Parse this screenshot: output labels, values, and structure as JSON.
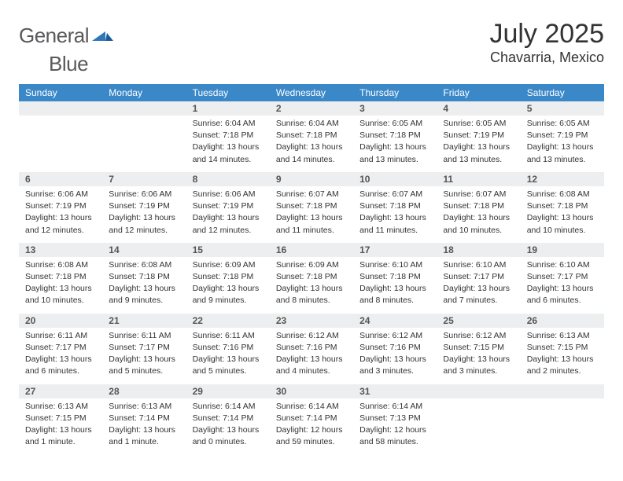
{
  "brand": {
    "word1": "General",
    "word2": "Blue"
  },
  "title": "July 2025",
  "location": "Chavarria, Mexico",
  "colors": {
    "header_bg": "#3b88c8",
    "row_sep": "#2f6fa8",
    "daynum_bg": "#edeeef",
    "text": "#333333",
    "logo_gray": "#58595b",
    "logo_blue": "#2f77bb"
  },
  "typography": {
    "title_fontsize": 34,
    "location_fontsize": 18,
    "weekday_fontsize": 12,
    "cell_fontsize": 10.5
  },
  "weekdays": [
    "Sunday",
    "Monday",
    "Tuesday",
    "Wednesday",
    "Thursday",
    "Friday",
    "Saturday"
  ],
  "weeks": [
    [
      null,
      null,
      {
        "n": "1",
        "sr": "Sunrise: 6:04 AM",
        "ss": "Sunset: 7:18 PM",
        "d1": "Daylight: 13 hours",
        "d2": "and 14 minutes."
      },
      {
        "n": "2",
        "sr": "Sunrise: 6:04 AM",
        "ss": "Sunset: 7:18 PM",
        "d1": "Daylight: 13 hours",
        "d2": "and 14 minutes."
      },
      {
        "n": "3",
        "sr": "Sunrise: 6:05 AM",
        "ss": "Sunset: 7:18 PM",
        "d1": "Daylight: 13 hours",
        "d2": "and 13 minutes."
      },
      {
        "n": "4",
        "sr": "Sunrise: 6:05 AM",
        "ss": "Sunset: 7:19 PM",
        "d1": "Daylight: 13 hours",
        "d2": "and 13 minutes."
      },
      {
        "n": "5",
        "sr": "Sunrise: 6:05 AM",
        "ss": "Sunset: 7:19 PM",
        "d1": "Daylight: 13 hours",
        "d2": "and 13 minutes."
      }
    ],
    [
      {
        "n": "6",
        "sr": "Sunrise: 6:06 AM",
        "ss": "Sunset: 7:19 PM",
        "d1": "Daylight: 13 hours",
        "d2": "and 12 minutes."
      },
      {
        "n": "7",
        "sr": "Sunrise: 6:06 AM",
        "ss": "Sunset: 7:19 PM",
        "d1": "Daylight: 13 hours",
        "d2": "and 12 minutes."
      },
      {
        "n": "8",
        "sr": "Sunrise: 6:06 AM",
        "ss": "Sunset: 7:19 PM",
        "d1": "Daylight: 13 hours",
        "d2": "and 12 minutes."
      },
      {
        "n": "9",
        "sr": "Sunrise: 6:07 AM",
        "ss": "Sunset: 7:18 PM",
        "d1": "Daylight: 13 hours",
        "d2": "and 11 minutes."
      },
      {
        "n": "10",
        "sr": "Sunrise: 6:07 AM",
        "ss": "Sunset: 7:18 PM",
        "d1": "Daylight: 13 hours",
        "d2": "and 11 minutes."
      },
      {
        "n": "11",
        "sr": "Sunrise: 6:07 AM",
        "ss": "Sunset: 7:18 PM",
        "d1": "Daylight: 13 hours",
        "d2": "and 10 minutes."
      },
      {
        "n": "12",
        "sr": "Sunrise: 6:08 AM",
        "ss": "Sunset: 7:18 PM",
        "d1": "Daylight: 13 hours",
        "d2": "and 10 minutes."
      }
    ],
    [
      {
        "n": "13",
        "sr": "Sunrise: 6:08 AM",
        "ss": "Sunset: 7:18 PM",
        "d1": "Daylight: 13 hours",
        "d2": "and 10 minutes."
      },
      {
        "n": "14",
        "sr": "Sunrise: 6:08 AM",
        "ss": "Sunset: 7:18 PM",
        "d1": "Daylight: 13 hours",
        "d2": "and 9 minutes."
      },
      {
        "n": "15",
        "sr": "Sunrise: 6:09 AM",
        "ss": "Sunset: 7:18 PM",
        "d1": "Daylight: 13 hours",
        "d2": "and 9 minutes."
      },
      {
        "n": "16",
        "sr": "Sunrise: 6:09 AM",
        "ss": "Sunset: 7:18 PM",
        "d1": "Daylight: 13 hours",
        "d2": "and 8 minutes."
      },
      {
        "n": "17",
        "sr": "Sunrise: 6:10 AM",
        "ss": "Sunset: 7:18 PM",
        "d1": "Daylight: 13 hours",
        "d2": "and 8 minutes."
      },
      {
        "n": "18",
        "sr": "Sunrise: 6:10 AM",
        "ss": "Sunset: 7:17 PM",
        "d1": "Daylight: 13 hours",
        "d2": "and 7 minutes."
      },
      {
        "n": "19",
        "sr": "Sunrise: 6:10 AM",
        "ss": "Sunset: 7:17 PM",
        "d1": "Daylight: 13 hours",
        "d2": "and 6 minutes."
      }
    ],
    [
      {
        "n": "20",
        "sr": "Sunrise: 6:11 AM",
        "ss": "Sunset: 7:17 PM",
        "d1": "Daylight: 13 hours",
        "d2": "and 6 minutes."
      },
      {
        "n": "21",
        "sr": "Sunrise: 6:11 AM",
        "ss": "Sunset: 7:17 PM",
        "d1": "Daylight: 13 hours",
        "d2": "and 5 minutes."
      },
      {
        "n": "22",
        "sr": "Sunrise: 6:11 AM",
        "ss": "Sunset: 7:16 PM",
        "d1": "Daylight: 13 hours",
        "d2": "and 5 minutes."
      },
      {
        "n": "23",
        "sr": "Sunrise: 6:12 AM",
        "ss": "Sunset: 7:16 PM",
        "d1": "Daylight: 13 hours",
        "d2": "and 4 minutes."
      },
      {
        "n": "24",
        "sr": "Sunrise: 6:12 AM",
        "ss": "Sunset: 7:16 PM",
        "d1": "Daylight: 13 hours",
        "d2": "and 3 minutes."
      },
      {
        "n": "25",
        "sr": "Sunrise: 6:12 AM",
        "ss": "Sunset: 7:15 PM",
        "d1": "Daylight: 13 hours",
        "d2": "and 3 minutes."
      },
      {
        "n": "26",
        "sr": "Sunrise: 6:13 AM",
        "ss": "Sunset: 7:15 PM",
        "d1": "Daylight: 13 hours",
        "d2": "and 2 minutes."
      }
    ],
    [
      {
        "n": "27",
        "sr": "Sunrise: 6:13 AM",
        "ss": "Sunset: 7:15 PM",
        "d1": "Daylight: 13 hours",
        "d2": "and 1 minute."
      },
      {
        "n": "28",
        "sr": "Sunrise: 6:13 AM",
        "ss": "Sunset: 7:14 PM",
        "d1": "Daylight: 13 hours",
        "d2": "and 1 minute."
      },
      {
        "n": "29",
        "sr": "Sunrise: 6:14 AM",
        "ss": "Sunset: 7:14 PM",
        "d1": "Daylight: 13 hours",
        "d2": "and 0 minutes."
      },
      {
        "n": "30",
        "sr": "Sunrise: 6:14 AM",
        "ss": "Sunset: 7:14 PM",
        "d1": "Daylight: 12 hours",
        "d2": "and 59 minutes."
      },
      {
        "n": "31",
        "sr": "Sunrise: 6:14 AM",
        "ss": "Sunset: 7:13 PM",
        "d1": "Daylight: 12 hours",
        "d2": "and 58 minutes."
      },
      null,
      null
    ]
  ]
}
